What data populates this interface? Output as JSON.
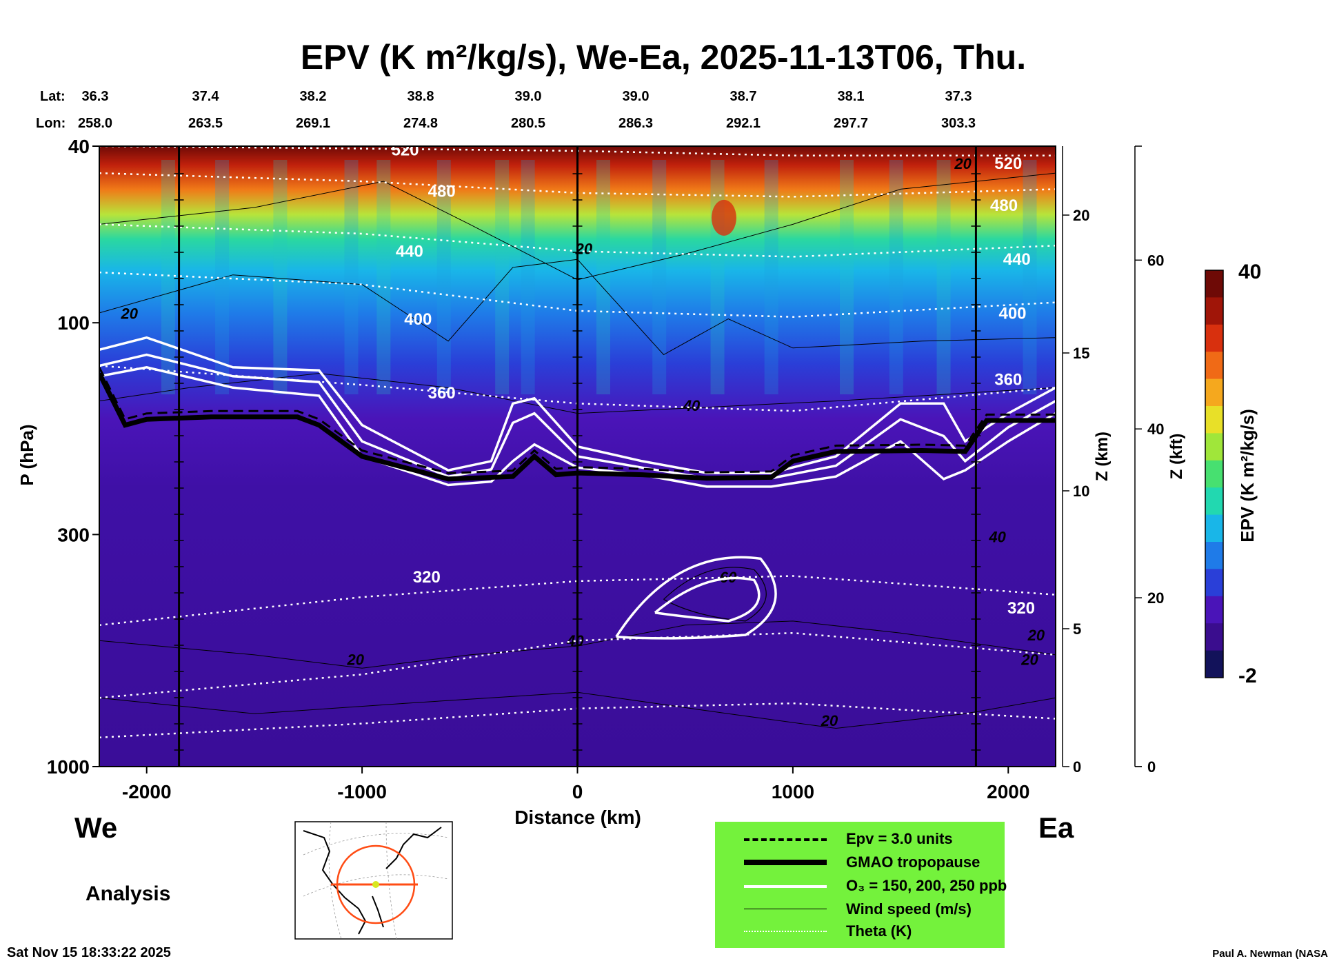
{
  "figure": {
    "title": "EPV (K m²/kg/s), We-Ea, 2025-11-13T06, Thu.",
    "lat_label": "Lat:",
    "lon_label": "Lon:",
    "lat_values": [
      "36.3",
      "37.4",
      "38.2",
      "38.8",
      "39.0",
      "39.0",
      "38.7",
      "38.1",
      "37.3"
    ],
    "lon_values": [
      "258.0",
      "263.5",
      "269.1",
      "274.8",
      "280.5",
      "286.3",
      "292.1",
      "297.7",
      "303.3"
    ],
    "left_end": "We",
    "right_end": "Ea",
    "analysis": "Analysis",
    "timestamp": "Sat Nov 15 18:33:22 2025",
    "credit": "Paul A. Newman (NASA"
  },
  "colorbar": {
    "label": "EPV (K m²/kg/s)",
    "max_label": "40",
    "min_label": "-2",
    "vmin": -2,
    "vmax": 40,
    "colors": [
      "#12125a",
      "#3a0d8e",
      "#4a14b8",
      "#2a3fd8",
      "#1f7be8",
      "#19b6e8",
      "#22d8b0",
      "#47e070",
      "#a0e63a",
      "#e8e028",
      "#f5a81e",
      "#f06a16",
      "#d8300e",
      "#a01508",
      "#6e0a06"
    ]
  },
  "legend": {
    "background": "#74f23c",
    "items": [
      {
        "label": "Epv = 3.0 units",
        "style": "dashed"
      },
      {
        "label": "GMAO tropopause",
        "style": "thick"
      },
      {
        "label": "O₃ = 150, 200, 250 ppb",
        "style": "white"
      },
      {
        "label": "Wind speed (m/s)",
        "style": "thin"
      },
      {
        "label": "Theta (K)",
        "style": "dotted"
      }
    ]
  },
  "chart_data": {
    "type": "heatmap",
    "title": "EPV (K m²/kg/s), We-Ea, 2025-11-13T06, Thu.",
    "xlabel": "Distance (km)",
    "ylabel": "P (hPa)",
    "right_axis_1": "Z (km)",
    "right_axis_2": "Z (kft)",
    "xlim": [
      -2220,
      2220
    ],
    "ylim": [
      1000,
      40
    ],
    "y_scale": "log",
    "x_ticks": [
      -2000,
      -1000,
      0,
      1000,
      2000
    ],
    "x_tick_labels": [
      "-2000",
      "-1000",
      "0",
      "1000",
      "2000"
    ],
    "y_ticks": [
      40,
      100,
      300,
      1000
    ],
    "y_tick_labels": [
      "40",
      "100",
      "300",
      "1000"
    ],
    "z_km_ticks": [
      0,
      5,
      10,
      15,
      20
    ],
    "z_km_labels": [
      "0",
      "5",
      "10",
      "15",
      "20"
    ],
    "z_kft_ticks": [
      0,
      20,
      40,
      60
    ],
    "z_kft_labels": [
      "0",
      "20",
      "40",
      "60"
    ],
    "vertical_lines_km": [
      -1850,
      0,
      1850
    ],
    "theta_contours": [
      {
        "level": "520",
        "points": [
          [
            -2220,
            40
          ],
          [
            -1000,
            40.5
          ],
          [
            0,
            41
          ],
          [
            1000,
            42
          ],
          [
            2220,
            42
          ]
        ],
        "labels": [
          {
            "x": -800,
            "p": 42
          },
          {
            "x": 2000,
            "p": 45
          }
        ]
      },
      {
        "level": "480",
        "points": [
          [
            -2220,
            46
          ],
          [
            -1000,
            48
          ],
          [
            0,
            51
          ],
          [
            1000,
            52
          ],
          [
            2220,
            50
          ]
        ],
        "labels": [
          {
            "x": -630,
            "p": 52
          },
          {
            "x": 1980,
            "p": 56
          }
        ]
      },
      {
        "level": "440",
        "points": [
          [
            -2220,
            60
          ],
          [
            -1000,
            63
          ],
          [
            0,
            69
          ],
          [
            1000,
            71
          ],
          [
            2220,
            67
          ]
        ],
        "labels": [
          {
            "x": -780,
            "p": 71
          },
          {
            "x": 2040,
            "p": 74
          }
        ]
      },
      {
        "level": "400",
        "points": [
          [
            -2220,
            77
          ],
          [
            -1000,
            82
          ],
          [
            0,
            94
          ],
          [
            1000,
            97
          ],
          [
            2220,
            90
          ]
        ],
        "labels": [
          {
            "x": -740,
            "p": 101
          },
          {
            "x": 2020,
            "p": 98
          }
        ]
      },
      {
        "level": "360",
        "points": [
          [
            -2220,
            125
          ],
          [
            -1000,
            138
          ],
          [
            0,
            152
          ],
          [
            1000,
            158
          ],
          [
            2220,
            140
          ]
        ],
        "labels": [
          {
            "x": -630,
            "p": 148
          },
          {
            "x": 2000,
            "p": 138
          }
        ]
      },
      {
        "level": "320",
        "points": [
          [
            -2220,
            480
          ],
          [
            -1000,
            415
          ],
          [
            0,
            382
          ],
          [
            1000,
            372
          ],
          [
            2220,
            410
          ]
        ],
        "labels": [
          {
            "x": -700,
            "p": 385
          },
          {
            "x": 2060,
            "p": 452
          }
        ]
      }
    ],
    "tropopause": [
      [
        -2220,
        130
      ],
      [
        -2100,
        170
      ],
      [
        -2000,
        165
      ],
      [
        -1700,
        163
      ],
      [
        -1300,
        163
      ],
      [
        -1200,
        170
      ],
      [
        -1000,
        200
      ],
      [
        -600,
        225
      ],
      [
        -300,
        222
      ],
      [
        -200,
        200
      ],
      [
        -100,
        220
      ],
      [
        0,
        218
      ],
      [
        300,
        220
      ],
      [
        600,
        224
      ],
      [
        900,
        223
      ],
      [
        1000,
        205
      ],
      [
        1200,
        195
      ],
      [
        1600,
        194
      ],
      [
        1800,
        195
      ],
      [
        1900,
        166
      ],
      [
        2220,
        166
      ]
    ],
    "o3_contours": [
      {
        "level": "150",
        "points": [
          [
            -2220,
            115
          ],
          [
            -2000,
            108
          ],
          [
            -1600,
            126
          ],
          [
            -1200,
            128
          ],
          [
            -1000,
            170
          ],
          [
            -600,
            215
          ],
          [
            -400,
            205
          ],
          [
            -300,
            152
          ],
          [
            -200,
            148
          ],
          [
            0,
            190
          ],
          [
            300,
            205
          ],
          [
            600,
            218
          ],
          [
            900,
            218
          ],
          [
            1200,
            200
          ],
          [
            1500,
            152
          ],
          [
            1700,
            152
          ],
          [
            1800,
            185
          ],
          [
            2000,
            160
          ],
          [
            2220,
            140
          ]
        ]
      },
      {
        "level": "200",
        "points": [
          [
            -2220,
            125
          ],
          [
            -2000,
            118
          ],
          [
            -1600,
            132
          ],
          [
            -1200,
            136
          ],
          [
            -1000,
            185
          ],
          [
            -600,
            222
          ],
          [
            -400,
            214
          ],
          [
            -300,
            168
          ],
          [
            -200,
            160
          ],
          [
            0,
            200
          ],
          [
            300,
            212
          ],
          [
            600,
            224
          ],
          [
            900,
            224
          ],
          [
            1200,
            210
          ],
          [
            1500,
            165
          ],
          [
            1700,
            180
          ],
          [
            1800,
            205
          ],
          [
            2000,
            172
          ],
          [
            2220,
            150
          ]
        ]
      },
      {
        "level": "250",
        "points": [
          [
            -2220,
            132
          ],
          [
            -2000,
            126
          ],
          [
            -1600,
            140
          ],
          [
            -1200,
            146
          ],
          [
            -1000,
            200
          ],
          [
            -600,
            232
          ],
          [
            -400,
            228
          ],
          [
            -300,
            205
          ],
          [
            -200,
            188
          ],
          [
            0,
            212
          ],
          [
            300,
            220
          ],
          [
            600,
            234
          ],
          [
            900,
            234
          ],
          [
            1200,
            222
          ],
          [
            1500,
            185
          ],
          [
            1700,
            225
          ],
          [
            1800,
            215
          ],
          [
            2000,
            185
          ],
          [
            2220,
            160
          ]
        ]
      }
    ],
    "wind_labels": [
      {
        "value": "20",
        "x": -2080,
        "p": 98
      },
      {
        "value": "20",
        "x": 30,
        "p": 70
      },
      {
        "value": "20",
        "x": 1790,
        "p": 45
      },
      {
        "value": "40",
        "x": 530,
        "p": 158
      },
      {
        "value": "40",
        "x": 1950,
        "p": 312
      },
      {
        "value": "60",
        "x": 700,
        "p": 385
      },
      {
        "value": "40",
        "x": -10,
        "p": 535
      },
      {
        "value": "20",
        "x": -1030,
        "p": 590
      },
      {
        "value": "20",
        "x": 2100,
        "p": 590
      },
      {
        "value": "20",
        "x": 2130,
        "p": 520
      },
      {
        "value": "20",
        "x": 1170,
        "p": 810
      }
    ]
  }
}
